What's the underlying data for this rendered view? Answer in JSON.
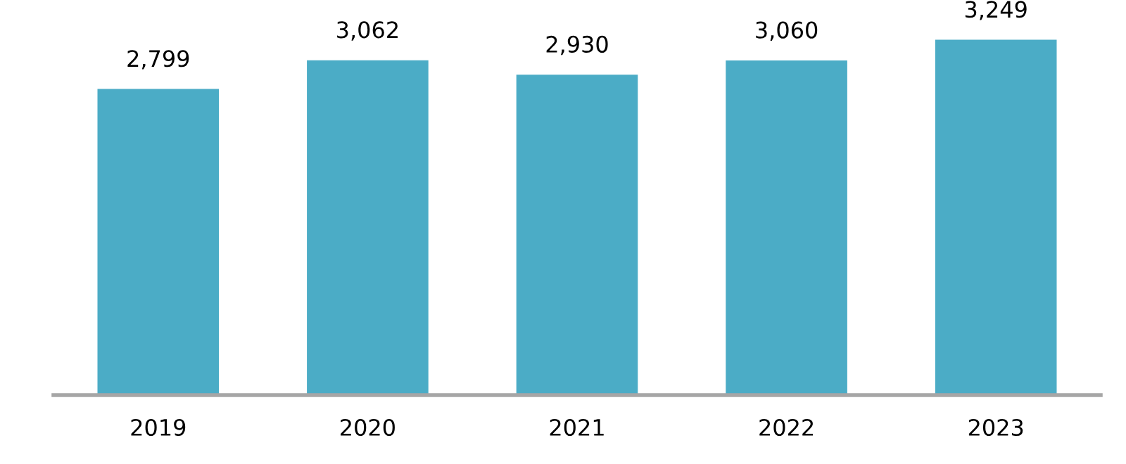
{
  "chart_data": {
    "type": "bar",
    "categories": [
      "2019",
      "2020",
      "2021",
      "2022",
      "2023"
    ],
    "values": [
      2799,
      3062,
      2930,
      3060,
      3249
    ],
    "value_labels": [
      "2,799",
      "3,062",
      "2,930",
      "3,060",
      "3,249"
    ],
    "color": "#4bacc6",
    "grid": false,
    "legend": false,
    "tick_labels": "x"
  }
}
